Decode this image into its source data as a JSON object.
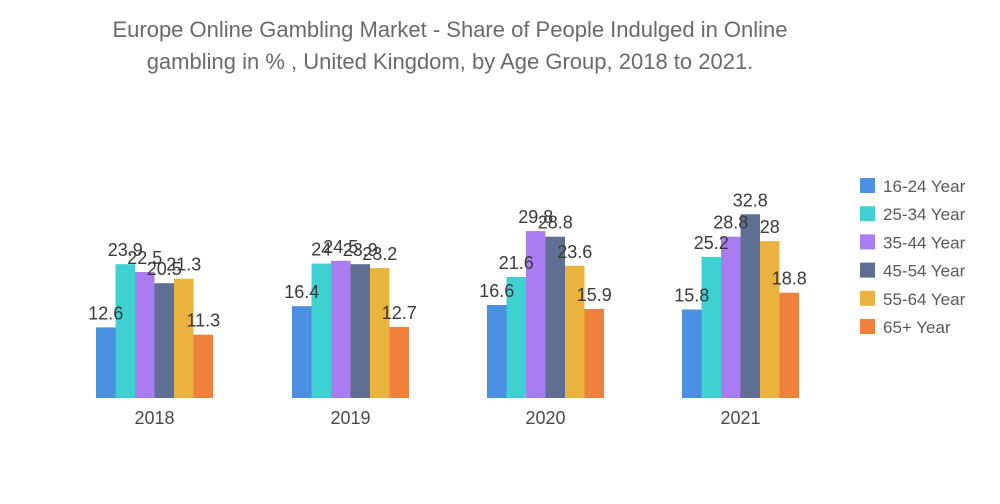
{
  "chart_data": {
    "type": "bar",
    "title_lines": [
      "Europe Online Gambling Market - Share of People Indulged in Online",
      "gambling in % , United Kingdom, by Age Group, 2018 to 2021."
    ],
    "categories": [
      "2018",
      "2019",
      "2020",
      "2021"
    ],
    "series": [
      {
        "name": "16-24 Year",
        "color": "#4a8fe0",
        "values": [
          12.6,
          16.4,
          16.6,
          15.8
        ]
      },
      {
        "name": "25-34 Year",
        "color": "#3fd0d2",
        "values": [
          23.9,
          24,
          21.6,
          25.2
        ]
      },
      {
        "name": "35-44 Year",
        "color": "#a97cf2",
        "values": [
          22.5,
          24.5,
          29.8,
          28.8
        ]
      },
      {
        "name": "45-54 Year",
        "color": "#5f6f94",
        "values": [
          20.5,
          23.9,
          28.8,
          32.8
        ]
      },
      {
        "name": "55-64 Year",
        "color": "#eab23f",
        "values": [
          21.3,
          23.2,
          23.6,
          28
        ]
      },
      {
        "name": "65+ Year",
        "color": "#f0813c",
        "values": [
          11.3,
          12.7,
          15.9,
          18.8
        ]
      }
    ],
    "data_label_texts": [
      [
        "12.6",
        "16.4",
        "16.6",
        "15.8"
      ],
      [
        "23.9",
        "24",
        "21.6",
        "25.2"
      ],
      [
        "22.5",
        "24.5",
        "29.8",
        "28.8"
      ],
      [
        "20.5",
        "23.9",
        "28.8",
        "32.8"
      ],
      [
        "21.3",
        "23.2",
        "23.6",
        "28"
      ],
      [
        "11.3",
        "12.7",
        "15.9",
        "18.8"
      ]
    ],
    "ylim": [
      0,
      35
    ],
    "grid": false,
    "legend": "right"
  }
}
